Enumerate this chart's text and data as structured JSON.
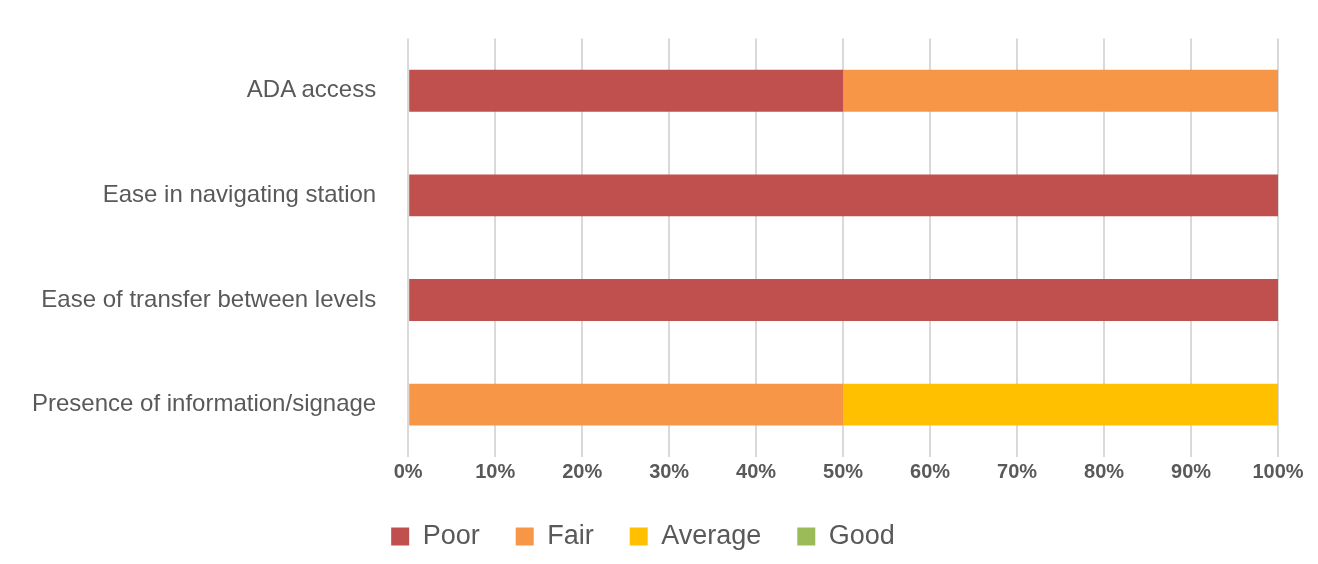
{
  "chart_data": {
    "type": "bar",
    "orientation": "horizontal",
    "stacked": true,
    "categories": [
      "ADA access",
      "Ease in navigating station",
      "Ease of transfer between levels",
      "Presence of information/signage"
    ],
    "series": [
      {
        "name": "Poor",
        "color": "#c0504d",
        "values": [
          50,
          100,
          100,
          0
        ]
      },
      {
        "name": "Fair",
        "color": "#f79646",
        "values": [
          50,
          0,
          0,
          50
        ]
      },
      {
        "name": "Average",
        "color": "#ffc000",
        "values": [
          0,
          0,
          0,
          50
        ]
      },
      {
        "name": "Good",
        "color": "#9bbb59",
        "values": [
          0,
          0,
          0,
          0
        ]
      }
    ],
    "xlim": [
      0,
      100
    ],
    "xticks": [
      {
        "value": 0,
        "label": "0%"
      },
      {
        "value": 10,
        "label": "10%"
      },
      {
        "value": 20,
        "label": "20%"
      },
      {
        "value": 30,
        "label": "30%"
      },
      {
        "value": 40,
        "label": "40%"
      },
      {
        "value": 50,
        "label": "50%"
      },
      {
        "value": 60,
        "label": "60%"
      },
      {
        "value": 70,
        "label": "70%"
      },
      {
        "value": 80,
        "label": "80%"
      },
      {
        "value": 90,
        "label": "90%"
      },
      {
        "value": 100,
        "label": "100%"
      }
    ],
    "grid": "x",
    "legend": "bottom"
  }
}
